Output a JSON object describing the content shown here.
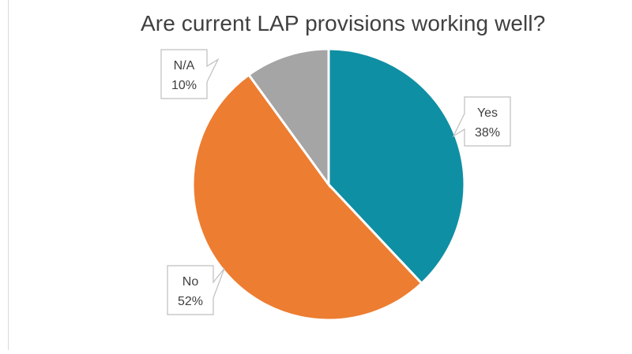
{
  "chart_data": {
    "type": "pie",
    "title": "Are current LAP provisions working well?",
    "slices": [
      {
        "label": "Yes",
        "value": 38,
        "value_label": "38%",
        "color": "#0f8fa3"
      },
      {
        "label": "No",
        "value": 52,
        "value_label": "52%",
        "color": "#ed7d31"
      },
      {
        "label": "N/A",
        "value": 10,
        "value_label": "10%",
        "color": "#a5a5a5"
      }
    ],
    "start_angle_deg": 0,
    "direction": "clockwise",
    "data_labels": "callouts",
    "legend": "none"
  }
}
